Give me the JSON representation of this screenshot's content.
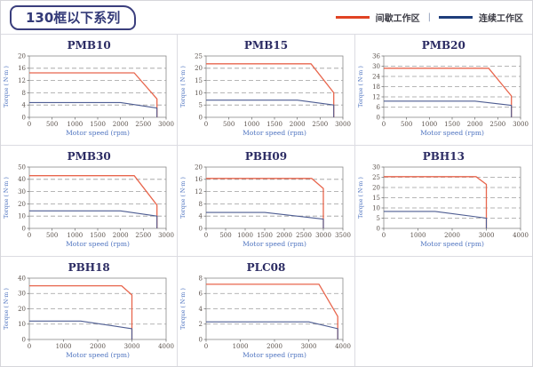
{
  "header": {
    "title": "130框以下系列",
    "separator": "|",
    "legend": [
      {
        "label": "间歇工作区",
        "color": "#e04323"
      },
      {
        "label": "连续工作区",
        "color": "#1e3d7b"
      }
    ]
  },
  "colors": {
    "chart_red": "#e8664d",
    "chart_blue": "#4e5d92",
    "grid_line": "#9e9e9e",
    "plot_border": "#8a8a8a",
    "axis_tick": "#666666",
    "tick_text": "#5b524c",
    "chart_title_text": "#2b2b63",
    "axis_label_text": "#4f74c0",
    "cell_border": "#dcdce2"
  },
  "chart_data": [
    {
      "type": "line",
      "title": "PMB10",
      "xlabel": "Motor speed (rpm)",
      "ylabel": "Torque ( N·m )",
      "xlim": [
        0,
        3000
      ],
      "xticks": [
        0,
        500,
        1000,
        1500,
        2000,
        2500,
        3000
      ],
      "ylim": [
        0,
        20
      ],
      "yticks": [
        0,
        4,
        8,
        12,
        16,
        20
      ],
      "grid": "horizontal-dashed",
      "legend_position": "none",
      "series": [
        {
          "name": "间歇工作区",
          "color": "#e8664d",
          "points": [
            [
              0,
              14.5
            ],
            [
              2300,
              14.5
            ],
            [
              2800,
              6
            ],
            [
              2800,
              0
            ]
          ]
        },
        {
          "name": "连续工作区",
          "color": "#4e5d92",
          "points": [
            [
              0,
              4.8
            ],
            [
              2000,
              4.8
            ],
            [
              2800,
              3
            ],
            [
              2800,
              0
            ]
          ]
        }
      ]
    },
    {
      "type": "line",
      "title": "PMB15",
      "xlabel": "Motor speed (rpm)",
      "ylabel": "Torque ( N·m )",
      "xlim": [
        0,
        3000
      ],
      "xticks": [
        0,
        500,
        1000,
        1500,
        2000,
        2500,
        3000
      ],
      "ylim": [
        0,
        25
      ],
      "yticks": [
        0,
        5,
        10,
        15,
        20,
        25
      ],
      "grid": "horizontal-dashed",
      "legend_position": "none",
      "series": [
        {
          "name": "间歇工作区",
          "color": "#e8664d",
          "points": [
            [
              0,
              21.8
            ],
            [
              2300,
              21.8
            ],
            [
              2800,
              10
            ],
            [
              2800,
              0
            ]
          ]
        },
        {
          "name": "连续工作区",
          "color": "#4e5d92",
          "points": [
            [
              0,
              7
            ],
            [
              2000,
              7
            ],
            [
              2800,
              5
            ],
            [
              2800,
              0
            ]
          ]
        }
      ]
    },
    {
      "type": "line",
      "title": "PMB20",
      "xlabel": "Motor speed (rpm)",
      "ylabel": "Torque ( N·m )",
      "xlim": [
        0,
        3000
      ],
      "xticks": [
        0,
        500,
        1000,
        1500,
        2000,
        2500,
        3000
      ],
      "ylim": [
        0,
        36
      ],
      "yticks": [
        0,
        6,
        12,
        18,
        24,
        30,
        36
      ],
      "grid": "horizontal-dashed",
      "legend_position": "none",
      "series": [
        {
          "name": "间歇工作区",
          "color": "#e8664d",
          "points": [
            [
              0,
              28.8
            ],
            [
              2300,
              28.8
            ],
            [
              2800,
              12.5
            ],
            [
              2800,
              0
            ]
          ]
        },
        {
          "name": "连续工作区",
          "color": "#4e5d92",
          "points": [
            [
              0,
              9.5
            ],
            [
              2000,
              9.5
            ],
            [
              2800,
              7
            ],
            [
              2800,
              0
            ]
          ]
        }
      ]
    },
    {
      "type": "line",
      "title": "PMB30",
      "xlabel": "Motor speed (rpm)",
      "ylabel": "Torque ( N·m )",
      "xlim": [
        0,
        3000
      ],
      "xticks": [
        0,
        500,
        1000,
        1500,
        2000,
        2500,
        3000
      ],
      "ylim": [
        0,
        50
      ],
      "yticks": [
        0,
        10,
        20,
        30,
        40,
        50
      ],
      "grid": "horizontal-dashed",
      "legend_position": "none",
      "series": [
        {
          "name": "间歇工作区",
          "color": "#e8664d",
          "points": [
            [
              0,
              43
            ],
            [
              2300,
              43
            ],
            [
              2800,
              19
            ],
            [
              2800,
              0
            ]
          ]
        },
        {
          "name": "连续工作区",
          "color": "#4e5d92",
          "points": [
            [
              0,
              14.3
            ],
            [
              2000,
              14.3
            ],
            [
              2800,
              10
            ],
            [
              2800,
              0
            ]
          ]
        }
      ]
    },
    {
      "type": "line",
      "title": "PBH09",
      "xlabel": "Motor speed (rpm)",
      "ylabel": "Torque ( N·m )",
      "xlim": [
        0,
        3500
      ],
      "xticks": [
        0,
        500,
        1000,
        1500,
        2000,
        2500,
        3000,
        3500
      ],
      "ylim": [
        0,
        20
      ],
      "yticks": [
        0,
        4,
        8,
        12,
        16,
        20
      ],
      "grid": "horizontal-dashed",
      "legend_position": "none",
      "series": [
        {
          "name": "间歇工作区",
          "color": "#e8664d",
          "points": [
            [
              0,
              16.3
            ],
            [
              2700,
              16.3
            ],
            [
              3000,
              13
            ],
            [
              3000,
              0
            ]
          ]
        },
        {
          "name": "连续工作区",
          "color": "#4e5d92",
          "points": [
            [
              0,
              5.2
            ],
            [
              1500,
              5.2
            ],
            [
              3000,
              3
            ],
            [
              3000,
              0
            ]
          ]
        }
      ]
    },
    {
      "type": "line",
      "title": "PBH13",
      "xlabel": "Motor speed (rpm)",
      "ylabel": "Torque ( N·m )",
      "xlim": [
        0,
        4000
      ],
      "xticks": [
        0,
        1000,
        2000,
        3000,
        4000
      ],
      "ylim": [
        0,
        30
      ],
      "yticks": [
        0,
        5,
        10,
        15,
        20,
        25,
        30
      ],
      "grid": "horizontal-dashed",
      "legend_position": "none",
      "series": [
        {
          "name": "间歇工作区",
          "color": "#e8664d",
          "points": [
            [
              0,
              25.3
            ],
            [
              2700,
              25.3
            ],
            [
              3000,
              21.5
            ],
            [
              3000,
              0
            ]
          ]
        },
        {
          "name": "连续工作区",
          "color": "#4e5d92",
          "points": [
            [
              0,
              8.3
            ],
            [
              1500,
              8.3
            ],
            [
              3000,
              5
            ],
            [
              3000,
              0
            ]
          ]
        }
      ]
    },
    {
      "type": "line",
      "title": "PBH18",
      "xlabel": "Motor speed (rpm)",
      "ylabel": "Torque ( N·m )",
      "xlim": [
        0,
        4000
      ],
      "xticks": [
        0,
        1000,
        2000,
        3000,
        4000
      ],
      "ylim": [
        0,
        40
      ],
      "yticks": [
        0,
        10,
        20,
        30,
        40
      ],
      "grid": "horizontal-dashed",
      "legend_position": "none",
      "series": [
        {
          "name": "间歇工作区",
          "color": "#e8664d",
          "points": [
            [
              0,
              35
            ],
            [
              2700,
              35
            ],
            [
              3000,
              29
            ],
            [
              3000,
              0
            ]
          ]
        },
        {
          "name": "连续工作区",
          "color": "#4e5d92",
          "points": [
            [
              0,
              12
            ],
            [
              1500,
              12
            ],
            [
              3000,
              7
            ],
            [
              3000,
              0
            ]
          ]
        }
      ]
    },
    {
      "type": "line",
      "title": "PLC08",
      "xlabel": "Motor speed (rpm)",
      "ylabel": "Torque ( N·m )",
      "xlim": [
        0,
        4000
      ],
      "xticks": [
        0,
        1000,
        2000,
        3000,
        4000
      ],
      "ylim": [
        0,
        8
      ],
      "yticks": [
        0,
        2,
        4,
        6,
        8
      ],
      "grid": "horizontal-dashed",
      "legend_position": "none",
      "series": [
        {
          "name": "间歇工作区",
          "color": "#e8664d",
          "points": [
            [
              0,
              7.2
            ],
            [
              3300,
              7.2
            ],
            [
              3850,
              3
            ],
            [
              3850,
              0
            ]
          ]
        },
        {
          "name": "连续工作区",
          "color": "#4e5d92",
          "points": [
            [
              0,
              2.3
            ],
            [
              3000,
              2.3
            ],
            [
              3850,
              1.4
            ],
            [
              3850,
              0
            ]
          ]
        }
      ]
    }
  ]
}
